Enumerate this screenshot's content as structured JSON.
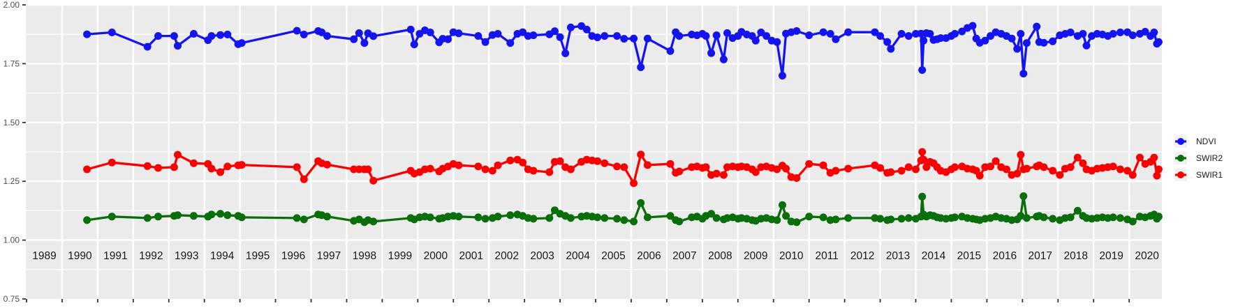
{
  "chart_data": {
    "type": "line",
    "title": "",
    "xlabel": "",
    "ylabel": "",
    "x_axis": {
      "domain": [
        1988.48,
        2020.42
      ],
      "year_labels": [
        1989,
        1990,
        1991,
        1992,
        1993,
        1994,
        1995,
        1996,
        1997,
        1998,
        1999,
        2000,
        2001,
        2002,
        2003,
        2004,
        2005,
        2006,
        2007,
        2008,
        2009,
        2010,
        2011,
        2012,
        2013,
        2014,
        2015,
        2016,
        2017,
        2018,
        2019,
        2020
      ],
      "grid": "on, vertical white lines at year boundaries"
    },
    "y_axis": {
      "domain": [
        0.75,
        2.0
      ],
      "ticks": [
        {
          "label": "2.00",
          "value": 2.0
        },
        {
          "label": "1.75",
          "value": 1.75
        },
        {
          "label": "1.50",
          "value": 1.5
        },
        {
          "label": "1.25",
          "value": 1.25
        },
        {
          "label": "1.00",
          "value": 1.0
        },
        {
          "label": "0.75",
          "value": 0.75
        }
      ],
      "minor_gridlines": [
        0.875,
        1.125,
        1.375,
        1.625,
        1.875
      ],
      "major_gridlines": [
        1.0,
        1.25,
        1.5,
        1.75,
        2.0
      ]
    },
    "legend": [
      "NDVI",
      "SWIR2",
      "SWIR1"
    ],
    "legend_position": "right, vertically centered",
    "dates": [
      1990.2,
      1990.9,
      1991.9,
      1992.2,
      1992.65,
      1992.75,
      1993.2,
      1993.6,
      1993.7,
      1993.95,
      1994.15,
      1994.45,
      1994.55,
      1996.1,
      1996.3,
      1996.7,
      1996.8,
      1996.95,
      1997.7,
      1997.85,
      1998.0,
      1998.1,
      1998.25,
      1999.3,
      1999.4,
      1999.55,
      1999.7,
      1999.85,
      2000.1,
      2000.2,
      2000.35,
      2000.5,
      2000.65,
      2001.2,
      2001.4,
      2001.6,
      2001.75,
      2002.1,
      2002.3,
      2002.45,
      2002.6,
      2002.75,
      2003.2,
      2003.35,
      2003.5,
      2003.65,
      2003.8,
      2004.1,
      2004.25,
      2004.4,
      2004.55,
      2004.75,
      2005.1,
      2005.3,
      2005.57,
      2005.77,
      2005.96,
      2006.6,
      2006.75,
      2006.85,
      2007.2,
      2007.35,
      2007.5,
      2007.6,
      2007.75,
      2007.9,
      2008.1,
      2008.2,
      2008.35,
      2008.5,
      2008.6,
      2008.75,
      2008.9,
      2009.0,
      2009.15,
      2009.3,
      2009.45,
      2009.6,
      2009.75,
      2009.85,
      2010.0,
      2010.15,
      2010.5,
      2010.9,
      2011.1,
      2011.25,
      2011.6,
      2012.35,
      2012.5,
      2012.7,
      2012.8,
      2013.1,
      2013.3,
      2013.5,
      2013.65,
      2013.68,
      2013.72,
      2013.8,
      2013.9,
      2014.0,
      2014.1,
      2014.2,
      2014.35,
      2014.5,
      2014.6,
      2014.8,
      2014.95,
      2015.1,
      2015.2,
      2015.3,
      2015.45,
      2015.6,
      2015.75,
      2015.9,
      2016.05,
      2016.2,
      2016.35,
      2016.45,
      2016.53,
      2016.62,
      2016.9,
      2016.97,
      2017.1,
      2017.35,
      2017.55,
      2017.7,
      2017.85,
      2018.05,
      2018.2,
      2018.3,
      2018.45,
      2018.6,
      2018.75,
      2018.9,
      2019.05,
      2019.25,
      2019.45,
      2019.6,
      2019.8,
      2019.95,
      2020.1,
      2020.2,
      2020.28,
      2020.33
    ],
    "series": [
      {
        "name": "NDVI",
        "color": "#1414f0",
        "values": [
          1.875,
          1.883,
          1.822,
          1.868,
          1.868,
          1.826,
          1.877,
          1.85,
          1.868,
          1.872,
          1.874,
          1.833,
          1.838,
          1.89,
          1.874,
          1.889,
          1.883,
          1.868,
          1.854,
          1.88,
          1.838,
          1.879,
          1.867,
          1.895,
          1.832,
          1.877,
          1.892,
          1.883,
          1.841,
          1.856,
          1.854,
          1.884,
          1.879,
          1.868,
          1.842,
          1.872,
          1.877,
          1.838,
          1.877,
          1.884,
          1.868,
          1.871,
          1.875,
          1.888,
          1.863,
          1.794,
          1.904,
          1.91,
          1.895,
          1.868,
          1.862,
          1.868,
          1.868,
          1.856,
          1.857,
          1.735,
          1.857,
          1.804,
          1.884,
          1.868,
          1.874,
          1.871,
          1.877,
          1.868,
          1.795,
          1.871,
          1.768,
          1.88,
          1.859,
          1.868,
          1.885,
          1.874,
          1.868,
          1.848,
          1.883,
          1.868,
          1.848,
          1.842,
          1.699,
          1.878,
          1.884,
          1.889,
          1.871,
          1.884,
          1.877,
          1.854,
          1.884,
          1.884,
          1.868,
          1.842,
          1.813,
          1.877,
          1.868,
          1.877,
          1.878,
          1.723,
          1.848,
          1.88,
          1.877,
          1.851,
          1.854,
          1.859,
          1.859,
          1.868,
          1.877,
          1.887,
          1.902,
          1.911,
          1.857,
          1.839,
          1.848,
          1.868,
          1.884,
          1.877,
          1.868,
          1.857,
          1.813,
          1.877,
          1.708,
          1.838,
          1.908,
          1.842,
          1.839,
          1.845,
          1.871,
          1.877,
          1.883,
          1.868,
          1.877,
          1.827,
          1.868,
          1.877,
          1.874,
          1.868,
          1.877,
          1.883,
          1.884,
          1.871,
          1.877,
          1.886,
          1.868,
          1.883,
          1.835,
          1.842
        ]
      },
      {
        "name": "SWIR2",
        "color": "#0a6e0a",
        "values": [
          1.085,
          1.1,
          1.094,
          1.1,
          1.103,
          1.106,
          1.103,
          1.1,
          1.109,
          1.112,
          1.106,
          1.103,
          1.097,
          1.094,
          1.088,
          1.109,
          1.106,
          1.1,
          1.082,
          1.088,
          1.076,
          1.085,
          1.079,
          1.094,
          1.088,
          1.097,
          1.1,
          1.097,
          1.091,
          1.094,
          1.1,
          1.103,
          1.1,
          1.097,
          1.091,
          1.094,
          1.1,
          1.106,
          1.109,
          1.103,
          1.094,
          1.091,
          1.094,
          1.127,
          1.112,
          1.103,
          1.094,
          1.1,
          1.103,
          1.1,
          1.097,
          1.094,
          1.091,
          1.085,
          1.079,
          1.158,
          1.097,
          1.103,
          1.085,
          1.079,
          1.097,
          1.1,
          1.091,
          1.103,
          1.112,
          1.094,
          1.088,
          1.094,
          1.097,
          1.091,
          1.094,
          1.091,
          1.085,
          1.082,
          1.091,
          1.094,
          1.088,
          1.085,
          1.149,
          1.103,
          1.079,
          1.076,
          1.1,
          1.097,
          1.085,
          1.088,
          1.094,
          1.094,
          1.091,
          1.085,
          1.088,
          1.091,
          1.094,
          1.091,
          1.1,
          1.185,
          1.109,
          1.1,
          1.106,
          1.103,
          1.097,
          1.094,
          1.091,
          1.094,
          1.097,
          1.1,
          1.094,
          1.091,
          1.088,
          1.085,
          1.091,
          1.094,
          1.1,
          1.094,
          1.091,
          1.085,
          1.088,
          1.103,
          1.187,
          1.094,
          1.1,
          1.103,
          1.097,
          1.091,
          1.085,
          1.094,
          1.097,
          1.125,
          1.103,
          1.094,
          1.091,
          1.094,
          1.097,
          1.094,
          1.097,
          1.094,
          1.088,
          1.079,
          1.1,
          1.097,
          1.103,
          1.109,
          1.091,
          1.1
        ]
      },
      {
        "name": "SWIR1",
        "color": "#fa0000",
        "values": [
          1.301,
          1.33,
          1.315,
          1.307,
          1.31,
          1.363,
          1.327,
          1.324,
          1.304,
          1.289,
          1.313,
          1.318,
          1.32,
          1.31,
          1.259,
          1.336,
          1.327,
          1.321,
          1.301,
          1.301,
          1.301,
          1.301,
          1.253,
          1.295,
          1.283,
          1.289,
          1.301,
          1.304,
          1.292,
          1.304,
          1.313,
          1.324,
          1.318,
          1.313,
          1.301,
          1.295,
          1.318,
          1.339,
          1.342,
          1.33,
          1.301,
          1.295,
          1.289,
          1.333,
          1.336,
          1.31,
          1.301,
          1.333,
          1.342,
          1.339,
          1.336,
          1.327,
          1.313,
          1.31,
          1.242,
          1.364,
          1.319,
          1.324,
          1.286,
          1.292,
          1.31,
          1.313,
          1.307,
          1.31,
          1.277,
          1.283,
          1.277,
          1.31,
          1.313,
          1.31,
          1.313,
          1.31,
          1.301,
          1.289,
          1.31,
          1.313,
          1.307,
          1.301,
          1.317,
          1.304,
          1.268,
          1.264,
          1.324,
          1.318,
          1.286,
          1.295,
          1.304,
          1.318,
          1.307,
          1.286,
          1.289,
          1.295,
          1.31,
          1.301,
          1.339,
          1.375,
          1.342,
          1.31,
          1.333,
          1.327,
          1.31,
          1.295,
          1.289,
          1.301,
          1.31,
          1.313,
          1.304,
          1.301,
          1.295,
          1.274,
          1.31,
          1.313,
          1.336,
          1.31,
          1.301,
          1.277,
          1.283,
          1.363,
          1.301,
          1.304,
          1.313,
          1.318,
          1.31,
          1.295,
          1.277,
          1.304,
          1.31,
          1.351,
          1.327,
          1.301,
          1.295,
          1.304,
          1.307,
          1.31,
          1.313,
          1.301,
          1.295,
          1.277,
          1.351,
          1.324,
          1.333,
          1.351,
          1.274,
          1.301
        ]
      }
    ],
    "style": {
      "panel_background": "#ebebeb",
      "gridline_color": "#ffffff",
      "outer_background": "#ffffff",
      "axis_text_color": "#4d4d4d",
      "year_label_color": "#1a1a1a",
      "tick_mark_color": "#333333",
      "legend_key_background": "#f2f2f2",
      "point_radius": 5.5,
      "line_width": 3.3
    }
  }
}
